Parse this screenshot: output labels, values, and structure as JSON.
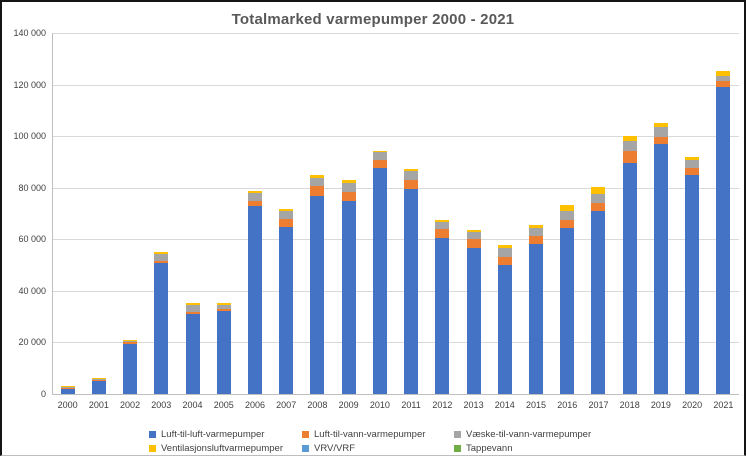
{
  "chart_data": {
    "type": "bar",
    "stacked": true,
    "title": "Totalmarked varmepumper 2000 - 2021",
    "xlabel": "",
    "ylabel": "",
    "ylim": [
      0,
      140000
    ],
    "ytick_step": 20000,
    "y_tick_labels": [
      "0",
      "20 000",
      "40 000",
      "60 000",
      "80 000",
      "100 000",
      "120 000",
      "140 000"
    ],
    "grid": true,
    "legend_position": "bottom",
    "categories": [
      "2000",
      "2001",
      "2002",
      "2003",
      "2004",
      "2005",
      "2006",
      "2007",
      "2008",
      "2009",
      "2010",
      "2011",
      "2012",
      "2013",
      "2014",
      "2015",
      "2016",
      "2017",
      "2018",
      "2019",
      "2020",
      "2021"
    ],
    "series": [
      {
        "name": "Luft-til-luft-varmepumper",
        "color": "#4472C4",
        "values": [
          1800,
          5000,
          19500,
          50700,
          31200,
          32300,
          73000,
          64900,
          76700,
          74800,
          87500,
          79400,
          60500,
          56500,
          50000,
          58300,
          64500,
          71000,
          89500,
          97000,
          85000,
          119000
        ]
      },
      {
        "name": "Luft-til-vann-varmepumper",
        "color": "#ED7D31",
        "values": [
          700,
          500,
          600,
          800,
          700,
          800,
          1800,
          2900,
          4000,
          3500,
          3300,
          3500,
          3400,
          3500,
          3000,
          3000,
          3000,
          3200,
          4800,
          2500,
          2600,
          2200
        ]
      },
      {
        "name": "Væske-til-vann-varmepumper",
        "color": "#A5A5A5",
        "values": [
          300,
          300,
          500,
          2600,
          2700,
          1600,
          3100,
          3300,
          3100,
          3600,
          2900,
          3600,
          2800,
          2800,
          3500,
          3100,
          3400,
          3400,
          3800,
          4000,
          3300,
          2300
        ]
      },
      {
        "name": "Ventilasjonsluftvarmepumper",
        "color": "#FFC000",
        "values": [
          400,
          400,
          400,
          1000,
          600,
          600,
          650,
          650,
          1050,
          950,
          700,
          650,
          800,
          700,
          1200,
          1300,
          2500,
          2500,
          1900,
          1700,
          1100,
          1800
        ]
      },
      {
        "name": "VRV/VRF",
        "color": "#5B9BD5",
        "values": [
          0,
          0,
          0,
          0,
          0,
          0,
          0,
          0,
          0,
          0,
          0,
          0,
          0,
          0,
          0,
          0,
          0,
          0,
          0,
          0,
          0,
          0
        ]
      },
      {
        "name": "Tappevann",
        "color": "#70AD47",
        "values": [
          0,
          0,
          0,
          0,
          0,
          0,
          0,
          0,
          0,
          0,
          0,
          0,
          0,
          0,
          0,
          0,
          0,
          0,
          0,
          0,
          0,
          0
        ]
      }
    ]
  }
}
